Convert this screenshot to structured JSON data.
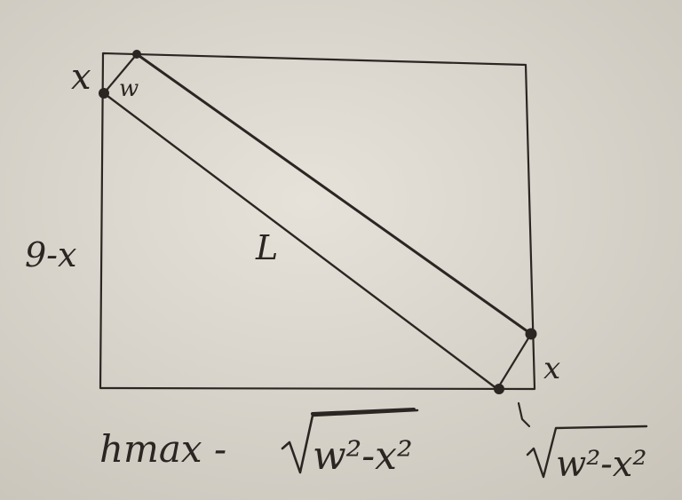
{
  "labels": {
    "corner_top_left": "x",
    "width_label": "w",
    "left_side": "9-x",
    "length_label": "L",
    "corner_bottom_right": "x",
    "bottom_left_expr": "hmax -",
    "bottom_left_sqrt_arg": "w²-x²",
    "bottom_right_sqrt_arg": "w²-x²"
  }
}
